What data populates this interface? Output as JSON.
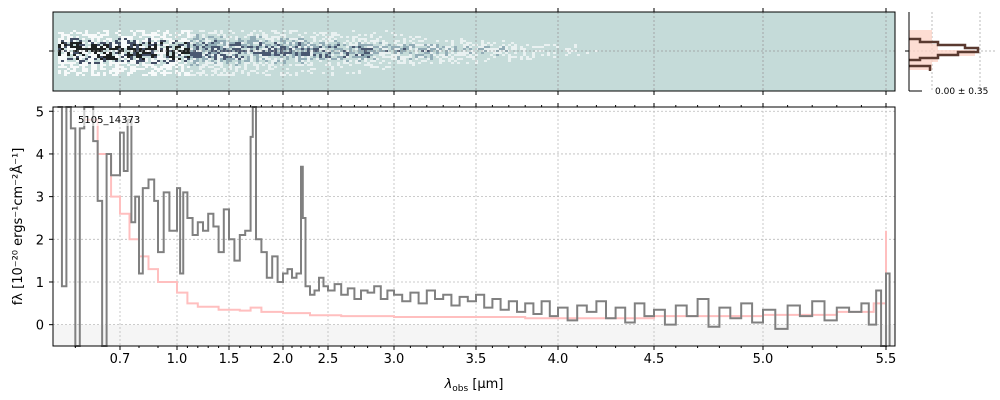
{
  "chart_data": {
    "type": "line",
    "object_label": "5105_14373",
    "xlabel": "λobs [μm]",
    "xlabel_parts": {
      "main": "λ",
      "sub": "obs",
      "unit": " [μm]"
    },
    "ylabel": "fλ [10⁻²⁰ ergs⁻¹cm⁻²Å⁻¹]",
    "xlim": [
      0.55,
      5.55
    ],
    "ylim": [
      -0.5,
      5.1
    ],
    "xticks": [
      0.7,
      1.0,
      1.5,
      2.0,
      2.5,
      3.0,
      3.5,
      4.0,
      4.5,
      5.0,
      5.5
    ],
    "xtick_labels": [
      "0.7",
      "1.0",
      "1.5",
      "2.0",
      "2.5",
      "3.0",
      "3.5",
      "4.0",
      "4.5",
      "5.0",
      "5.5"
    ],
    "yticks": [
      0,
      1,
      2,
      3,
      4,
      5
    ],
    "ytick_labels": [
      "0",
      "1",
      "2",
      "3",
      "4",
      "5"
    ],
    "grid": true,
    "colors": {
      "observed": "#808080",
      "model": "#ffbfbf",
      "panel2d": "#c5dbd9",
      "hist": "#5a3a30",
      "hist_fill": "#fcd5c8"
    },
    "series": [
      {
        "name": "observed",
        "points": [
          [
            0.56,
            5.1
          ],
          [
            0.57,
            0.9
          ],
          [
            0.58,
            5.1
          ],
          [
            0.59,
            4.6
          ],
          [
            0.6,
            -0.5
          ],
          [
            0.61,
            4.6
          ],
          [
            0.62,
            5.1
          ],
          [
            0.64,
            4.3
          ],
          [
            0.65,
            2.9
          ],
          [
            0.66,
            -0.5
          ],
          [
            0.67,
            4.0
          ],
          [
            0.68,
            3.5
          ],
          [
            0.7,
            4.5
          ],
          [
            0.72,
            3.6
          ],
          [
            0.74,
            4.8
          ],
          [
            0.76,
            2.4
          ],
          [
            0.78,
            3.0
          ],
          [
            0.8,
            1.2
          ],
          [
            0.82,
            3.2
          ],
          [
            0.85,
            3.4
          ],
          [
            0.88,
            2.9
          ],
          [
            0.9,
            1.7
          ],
          [
            0.93,
            3.1
          ],
          [
            0.96,
            2.2
          ],
          [
            1.0,
            3.2
          ],
          [
            1.03,
            1.2
          ],
          [
            1.06,
            3.1
          ],
          [
            1.1,
            2.5
          ],
          [
            1.15,
            2.1
          ],
          [
            1.2,
            2.4
          ],
          [
            1.25,
            2.2
          ],
          [
            1.3,
            2.6
          ],
          [
            1.35,
            2.3
          ],
          [
            1.4,
            1.7
          ],
          [
            1.45,
            2.7
          ],
          [
            1.5,
            2.0
          ],
          [
            1.55,
            1.5
          ],
          [
            1.6,
            2.1
          ],
          [
            1.65,
            2.2
          ],
          [
            1.7,
            4.4
          ],
          [
            1.72,
            5.1
          ],
          [
            1.75,
            2.0
          ],
          [
            1.8,
            1.7
          ],
          [
            1.85,
            1.1
          ],
          [
            1.9,
            1.6
          ],
          [
            1.95,
            1.0
          ],
          [
            2.0,
            1.2
          ],
          [
            2.05,
            1.3
          ],
          [
            2.1,
            1.1
          ],
          [
            2.15,
            1.2
          ],
          [
            2.2,
            3.7
          ],
          [
            2.22,
            2.5
          ],
          [
            2.25,
            0.9
          ],
          [
            2.3,
            0.7
          ],
          [
            2.35,
            0.8
          ],
          [
            2.4,
            1.1
          ],
          [
            2.45,
            0.9
          ],
          [
            2.5,
            0.8
          ],
          [
            2.55,
            0.95
          ],
          [
            2.6,
            0.7
          ],
          [
            2.65,
            0.85
          ],
          [
            2.7,
            0.6
          ],
          [
            2.75,
            0.8
          ],
          [
            2.8,
            0.75
          ],
          [
            2.85,
            0.9
          ],
          [
            2.9,
            0.6
          ],
          [
            2.95,
            0.8
          ],
          [
            3.0,
            0.7
          ],
          [
            3.05,
            0.55
          ],
          [
            3.1,
            0.75
          ],
          [
            3.15,
            0.5
          ],
          [
            3.2,
            0.8
          ],
          [
            3.25,
            0.6
          ],
          [
            3.3,
            0.7
          ],
          [
            3.35,
            0.45
          ],
          [
            3.4,
            0.65
          ],
          [
            3.45,
            0.55
          ],
          [
            3.5,
            0.7
          ],
          [
            3.55,
            0.4
          ],
          [
            3.6,
            0.6
          ],
          [
            3.65,
            0.35
          ],
          [
            3.7,
            0.55
          ],
          [
            3.75,
            0.3
          ],
          [
            3.8,
            0.5
          ],
          [
            3.85,
            0.25
          ],
          [
            3.9,
            0.55
          ],
          [
            3.95,
            0.2
          ],
          [
            4.0,
            0.4
          ],
          [
            4.05,
            0.1
          ],
          [
            4.1,
            0.45
          ],
          [
            4.15,
            0.3
          ],
          [
            4.2,
            0.55
          ],
          [
            4.25,
            0.15
          ],
          [
            4.3,
            0.4
          ],
          [
            4.35,
            0.05
          ],
          [
            4.4,
            0.5
          ],
          [
            4.45,
            0.2
          ],
          [
            4.5,
            0.35
          ],
          [
            4.55,
            0.0
          ],
          [
            4.6,
            0.45
          ],
          [
            4.65,
            0.2
          ],
          [
            4.7,
            0.6
          ],
          [
            4.75,
            -0.05
          ],
          [
            4.8,
            0.4
          ],
          [
            4.85,
            0.15
          ],
          [
            4.9,
            0.5
          ],
          [
            4.95,
            0.05
          ],
          [
            5.0,
            0.35
          ],
          [
            5.05,
            -0.1
          ],
          [
            5.1,
            0.45
          ],
          [
            5.15,
            0.2
          ],
          [
            5.2,
            0.55
          ],
          [
            5.25,
            0.1
          ],
          [
            5.3,
            0.4
          ],
          [
            5.35,
            0.3
          ],
          [
            5.4,
            0.5
          ],
          [
            5.43,
            0.0
          ],
          [
            5.46,
            0.8
          ],
          [
            5.48,
            -0.5
          ],
          [
            5.5,
            1.2
          ],
          [
            5.52,
            -0.5
          ]
        ]
      },
      {
        "name": "model",
        "points": [
          [
            0.62,
            4.8
          ],
          [
            0.65,
            4.0
          ],
          [
            0.68,
            3.0
          ],
          [
            0.7,
            2.6
          ],
          [
            0.75,
            2.0
          ],
          [
            0.8,
            1.6
          ],
          [
            0.85,
            1.3
          ],
          [
            0.9,
            1.0
          ],
          [
            1.0,
            0.75
          ],
          [
            1.1,
            0.5
          ],
          [
            1.2,
            0.42
          ],
          [
            1.4,
            0.35
          ],
          [
            1.6,
            0.33
          ],
          [
            1.7,
            0.4
          ],
          [
            1.8,
            0.3
          ],
          [
            2.0,
            0.27
          ],
          [
            2.3,
            0.22
          ],
          [
            2.6,
            0.2
          ],
          [
            3.0,
            0.18
          ],
          [
            3.5,
            0.18
          ],
          [
            3.8,
            0.15
          ],
          [
            4.0,
            0.15
          ],
          [
            4.5,
            0.2
          ],
          [
            5.0,
            0.23
          ],
          [
            5.3,
            0.3
          ],
          [
            5.45,
            0.5
          ],
          [
            5.5,
            2.2
          ]
        ]
      }
    ],
    "residual_hist_label": "0.00 ± 0.35"
  }
}
